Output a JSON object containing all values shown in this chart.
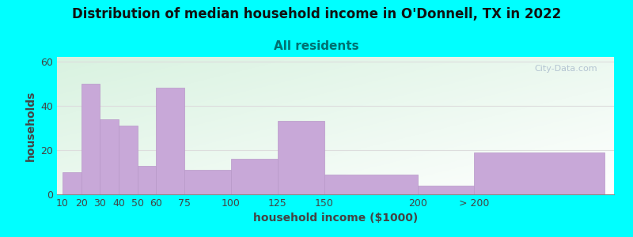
{
  "title": "Distribution of median household income in O'Donnell, TX in 2022",
  "subtitle": "All residents",
  "xlabel": "household income ($1000)",
  "ylabel": "households",
  "bg_color": "#00FFFF",
  "bar_color": "#C8A8D8",
  "bar_edge_color": "#B898C8",
  "yticks": [
    0,
    20,
    40,
    60
  ],
  "ylim": [
    0,
    62
  ],
  "categories": [
    "10",
    "20",
    "30",
    "40",
    "50",
    "60",
    "75",
    "100",
    "125",
    "150",
    "200",
    "> 200"
  ],
  "values": [
    10,
    50,
    34,
    31,
    13,
    48,
    11,
    16,
    33,
    9,
    4,
    19
  ],
  "bar_lefts": [
    10,
    20,
    30,
    40,
    50,
    60,
    75,
    100,
    125,
    150,
    200,
    230
  ],
  "bar_widths": [
    10,
    10,
    10,
    10,
    10,
    15,
    25,
    25,
    25,
    50,
    30,
    70
  ],
  "xtick_positions": [
    10,
    20,
    30,
    40,
    50,
    60,
    75,
    100,
    125,
    150,
    200,
    230
  ],
  "xlim": [
    7,
    305
  ],
  "watermark": "City-Data.com",
  "title_fontsize": 12,
  "subtitle_fontsize": 11,
  "axis_label_fontsize": 10,
  "tick_fontsize": 9,
  "title_color": "#111111",
  "subtitle_color": "#007070",
  "label_color": "#444444",
  "grid_color": "#dddddd",
  "watermark_color": "#aabbcc"
}
